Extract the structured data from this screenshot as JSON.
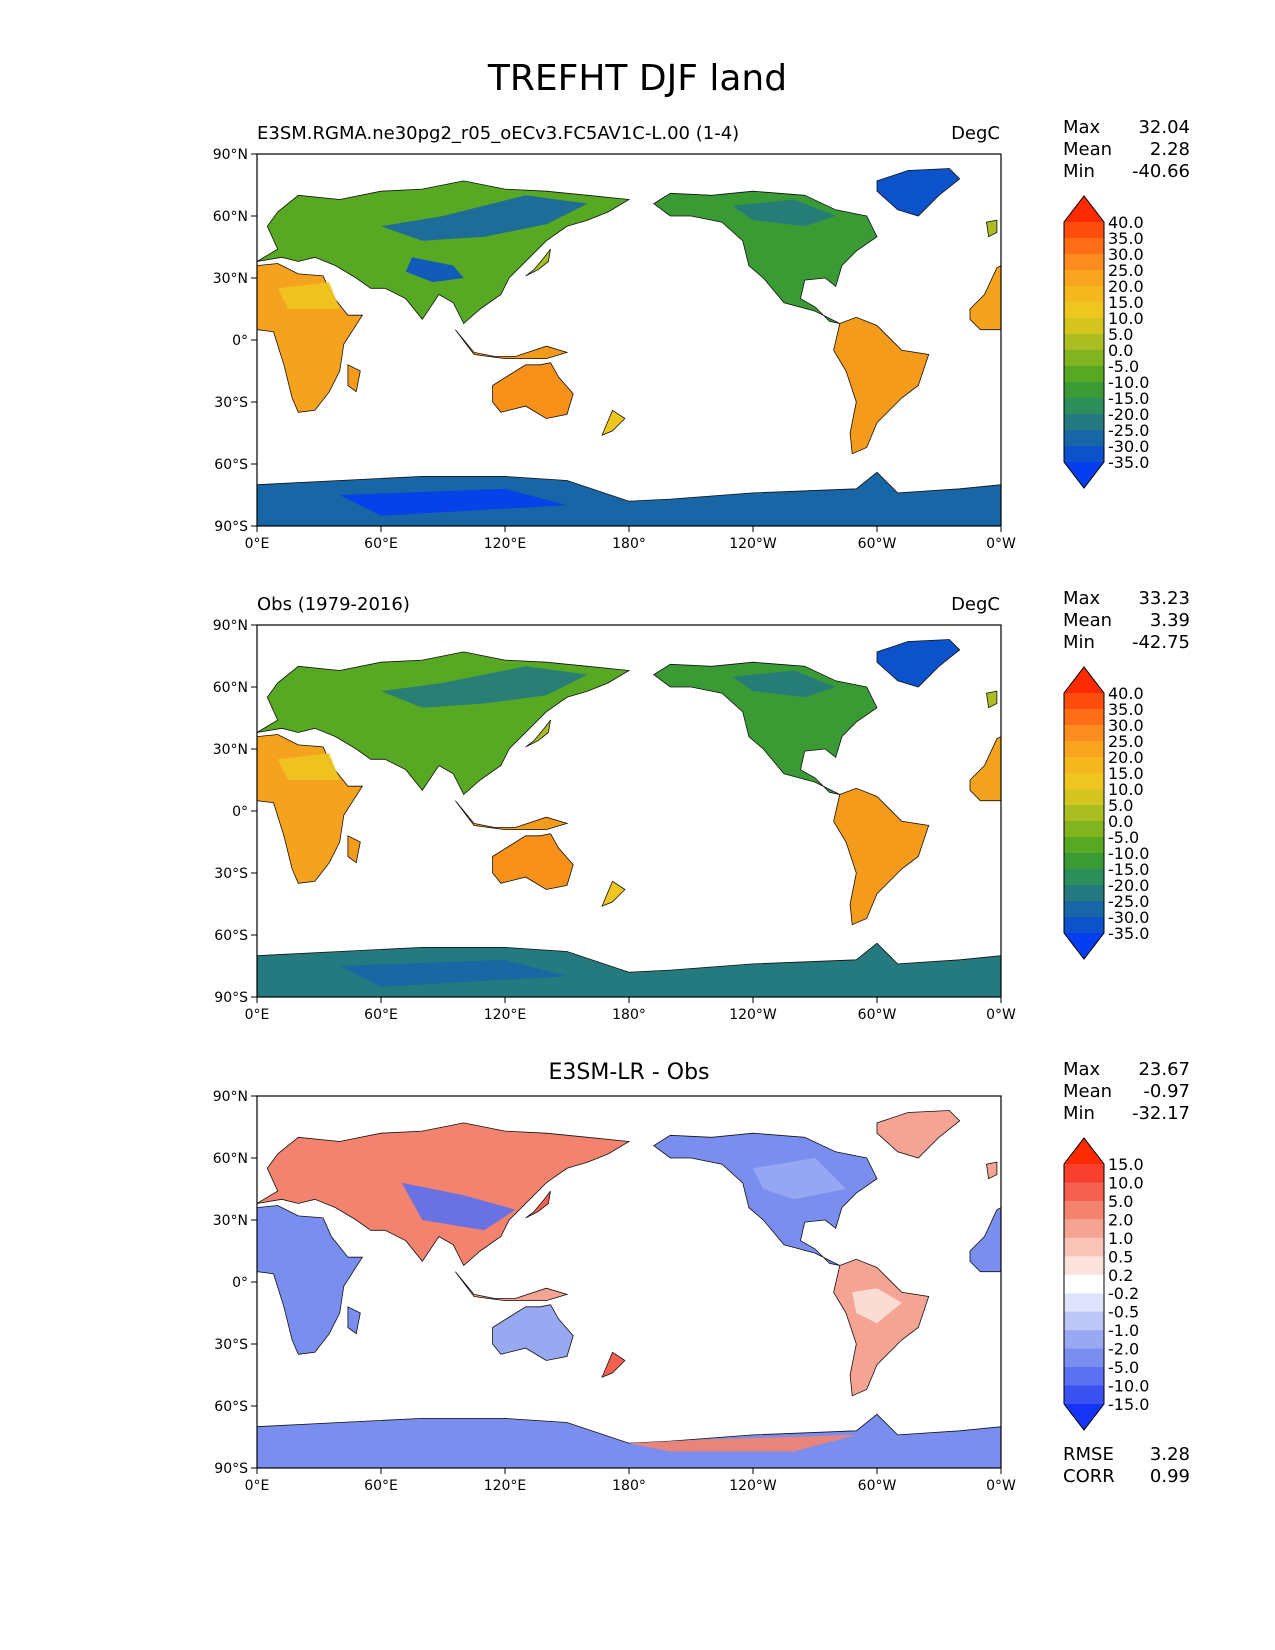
{
  "title": "TREFHT DJF land",
  "panels": [
    {
      "left_title": "E3SM.RGMA.ne30pg2_r05_oECv3.FC5AV1C-L.00 (1-4)",
      "center_title": "",
      "right_title": "DegC",
      "stats": [
        {
          "label": "Max",
          "value": "32.04"
        },
        {
          "label": "Mean",
          "value": "2.28"
        },
        {
          "label": "Min",
          "value": "-40.66"
        }
      ],
      "colorbar_levels": [
        "40.0",
        "35.0",
        "30.0",
        "25.0",
        "20.0",
        "15.0",
        "10.0",
        "5.0",
        "0.0",
        "-5.0",
        "-10.0",
        "-15.0",
        "-20.0",
        "-25.0",
        "-30.0",
        "-35.0"
      ],
      "colorbar_colors": [
        "#ff2a00",
        "#fe4d0c",
        "#fd6e17",
        "#fc8c1f",
        "#f9a41f",
        "#f5b71e",
        "#efc51f",
        "#d4c51f",
        "#aabe22",
        "#82b41f",
        "#57a823",
        "#3a9b34",
        "#2c8e5b",
        "#257a80",
        "#1866a6",
        "#0c52cb",
        "#053df0"
      ]
    },
    {
      "left_title": "Obs (1979-2016)",
      "center_title": "",
      "right_title": "DegC",
      "stats": [
        {
          "label": "Max",
          "value": "33.23"
        },
        {
          "label": "Mean",
          "value": "3.39"
        },
        {
          "label": "Min",
          "value": "-42.75"
        }
      ],
      "colorbar_levels": [
        "40.0",
        "35.0",
        "30.0",
        "25.0",
        "20.0",
        "15.0",
        "10.0",
        "5.0",
        "0.0",
        "-5.0",
        "-10.0",
        "-15.0",
        "-20.0",
        "-25.0",
        "-30.0",
        "-35.0"
      ],
      "colorbar_colors": [
        "#ff2a00",
        "#fe4d0c",
        "#fd6e17",
        "#fc8c1f",
        "#f9a41f",
        "#f5b71e",
        "#efc51f",
        "#d4c51f",
        "#aabe22",
        "#82b41f",
        "#57a823",
        "#3a9b34",
        "#2c8e5b",
        "#257a80",
        "#1866a6",
        "#0c52cb",
        "#053df0"
      ]
    },
    {
      "left_title": "",
      "center_title": "E3SM-LR - Obs",
      "right_title": "",
      "stats": [
        {
          "label": "Max",
          "value": "23.67"
        },
        {
          "label": "Mean",
          "value": "-0.97"
        },
        {
          "label": "Min",
          "value": "-32.17"
        }
      ],
      "bottom_stats": [
        {
          "label": "RMSE",
          "value": "3.28"
        },
        {
          "label": "CORR",
          "value": "0.99"
        }
      ],
      "colorbar_levels": [
        "15.0",
        "10.0",
        "5.0",
        "2.0",
        "1.0",
        "0.5",
        "0.2",
        "-0.2",
        "-0.5",
        "-1.0",
        "-2.0",
        "-5.0",
        "-10.0",
        "-15.0"
      ],
      "colorbar_colors": [
        "#ff2a00",
        "#f9402f",
        "#f5604f",
        "#f3836f",
        "#f5a493",
        "#f8c5b7",
        "#fbe2da",
        "#ffffff",
        "#dfe3fb",
        "#bcc6f7",
        "#98a9f2",
        "#7a8ef0",
        "#5b70f0",
        "#3a52f2",
        "#1535f8"
      ]
    }
  ],
  "axes": {
    "yticks": [
      "90°N",
      "60°N",
      "30°N",
      "0°",
      "30°S",
      "60°S",
      "90°S"
    ],
    "xticks": [
      "0°E",
      "60°E",
      "120°E",
      "180°",
      "120°W",
      "60°W",
      "0°W"
    ]
  },
  "colors": {
    "ocean": "#ffffff",
    "coast": "#111111"
  }
}
